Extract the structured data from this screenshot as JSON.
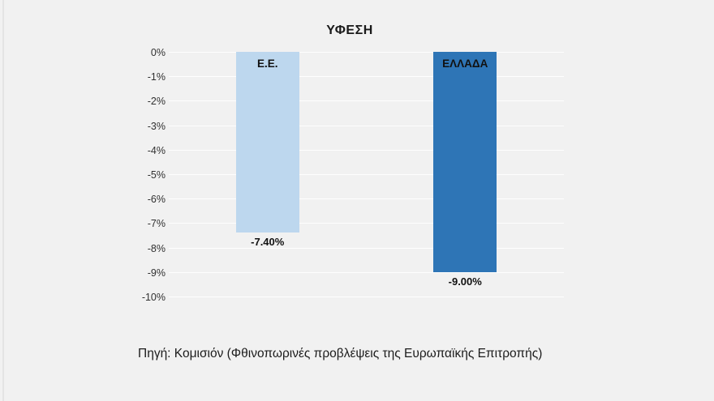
{
  "chart_data": {
    "type": "bar",
    "title": "ΥΦΕΣΗ",
    "categories": [
      "Ε.Ε.",
      "ΕΛΛΑΔΑ"
    ],
    "values": [
      -7.4,
      -9.0
    ],
    "data_labels": [
      "-7.40%",
      "-9.00%"
    ],
    "bar_colors": [
      "#bdd7ee",
      "#2e75b6"
    ],
    "xlabel": "",
    "ylabel": "",
    "ylim": [
      -10,
      0
    ],
    "yticks": [
      0,
      -1,
      -2,
      -3,
      -4,
      -5,
      -6,
      -7,
      -8,
      -9,
      -10
    ],
    "ytick_labels": [
      "0%",
      "-1%",
      "-2%",
      "-3%",
      "-4%",
      "-5%",
      "-6%",
      "-7%",
      "-8%",
      "-9%",
      "-10%"
    ],
    "grid": true,
    "legend": false,
    "background_color": "#f1f1f1",
    "source_note": "Πηγή: Κομισιόν (Φθινοπωρινές προβλέψεις της Ευρωπαϊκής Επιτροπής)"
  }
}
